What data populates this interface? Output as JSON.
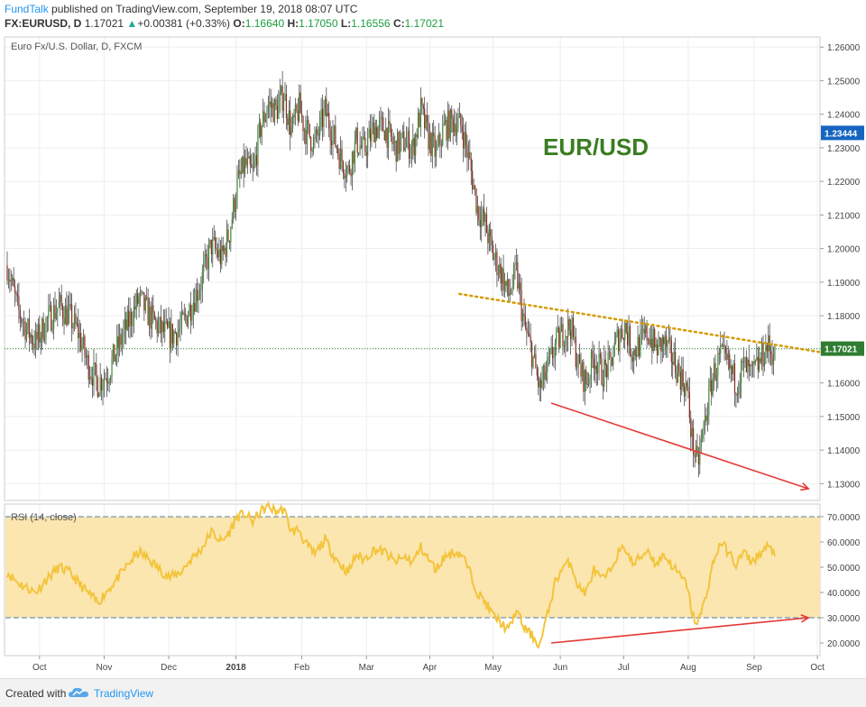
{
  "header": {
    "publisher": "FundTalk",
    "published_text": " published on TradingView.com, September 19, 2018 08:07 UTC",
    "symbol": "FX:EURUSD, D",
    "last": "1.17021",
    "change": "+0.00381 (+0.33%)",
    "o_label": "O:",
    "o": "1.16640",
    "h_label": "H:",
    "h": "1.17050",
    "l_label": "L:",
    "l": "1.16556",
    "c_label": "C:",
    "c": "1.17021"
  },
  "footer": {
    "created_with": "Created with",
    "brand": "TradingView"
  },
  "colors": {
    "up": "#3d8c36",
    "down": "#8a2a1e",
    "rsi": "#f3c43b",
    "rsi_band": "#fbe6b0",
    "trend": "#d49b00",
    "arrow": "#e53935",
    "eurusd_label": "#3a7d1f"
  },
  "chart_data": [
    {
      "type": "candlestick",
      "title": "Euro Fx/U.S. Dollar, D, FXCM",
      "annotation": "EUR/USD",
      "ylim": [
        1.125,
        1.263
      ],
      "y_ticks": [
        "1.26000",
        "1.25000",
        "1.24000",
        "1.23000",
        "1.22000",
        "1.21000",
        "1.20000",
        "1.19000",
        "1.18000",
        "1.17000",
        "1.16000",
        "1.15000",
        "1.14000",
        "1.13000"
      ],
      "y_tick_values": [
        1.26,
        1.25,
        1.24,
        1.23,
        1.22,
        1.21,
        1.2,
        1.19,
        1.18,
        1.17,
        1.16,
        1.15,
        1.14,
        1.13
      ],
      "current_price": 1.17021,
      "current_label": "1.17021",
      "marker_price": 1.23444,
      "marker_label": "1.23444",
      "x_labels": [
        "Oct",
        "Nov",
        "Dec",
        "2018",
        "Feb",
        "Mar",
        "Apr",
        "May",
        "Jun",
        "Jul",
        "Aug",
        "Sep",
        "Oct"
      ],
      "x_label_days": [
        25,
        75,
        125,
        177,
        228,
        278,
        327,
        376,
        428,
        477,
        527,
        578,
        627
      ],
      "close_path": [
        [
          0,
          1.195
        ],
        [
          8,
          1.182
        ],
        [
          15,
          1.176
        ],
        [
          22,
          1.172
        ],
        [
          30,
          1.178
        ],
        [
          40,
          1.183
        ],
        [
          48,
          1.18
        ],
        [
          55,
          1.175
        ],
        [
          62,
          1.166
        ],
        [
          70,
          1.16
        ],
        [
          78,
          1.163
        ],
        [
          86,
          1.171
        ],
        [
          95,
          1.179
        ],
        [
          102,
          1.185
        ],
        [
          110,
          1.18
        ],
        [
          118,
          1.176
        ],
        [
          126,
          1.174
        ],
        [
          134,
          1.176
        ],
        [
          142,
          1.183
        ],
        [
          150,
          1.19
        ],
        [
          158,
          1.201
        ],
        [
          166,
          1.197
        ],
        [
          172,
          1.205
        ],
        [
          178,
          1.219
        ],
        [
          184,
          1.225
        ],
        [
          190,
          1.222
        ],
        [
          196,
          1.236
        ],
        [
          202,
          1.243
        ],
        [
          208,
          1.241
        ],
        [
          214,
          1.246
        ],
        [
          220,
          1.235
        ],
        [
          226,
          1.242
        ],
        [
          230,
          1.236
        ],
        [
          238,
          1.231
        ],
        [
          246,
          1.241
        ],
        [
          252,
          1.234
        ],
        [
          258,
          1.227
        ],
        [
          264,
          1.223
        ],
        [
          270,
          1.232
        ],
        [
          276,
          1.229
        ],
        [
          284,
          1.236
        ],
        [
          292,
          1.236
        ],
        [
          300,
          1.23
        ],
        [
          308,
          1.232
        ],
        [
          314,
          1.23
        ],
        [
          320,
          1.241
        ],
        [
          326,
          1.233
        ],
        [
          332,
          1.228
        ],
        [
          338,
          1.236
        ],
        [
          346,
          1.238
        ],
        [
          352,
          1.236
        ],
        [
          358,
          1.225
        ],
        [
          364,
          1.212
        ],
        [
          370,
          1.207
        ],
        [
          376,
          1.198
        ],
        [
          382,
          1.193
        ],
        [
          388,
          1.186
        ],
        [
          394,
          1.193
        ],
        [
          400,
          1.177
        ],
        [
          406,
          1.169
        ],
        [
          412,
          1.158
        ],
        [
          418,
          1.164
        ],
        [
          424,
          1.171
        ],
        [
          430,
          1.175
        ],
        [
          436,
          1.177
        ],
        [
          442,
          1.165
        ],
        [
          448,
          1.16
        ],
        [
          454,
          1.168
        ],
        [
          460,
          1.163
        ],
        [
          466,
          1.165
        ],
        [
          472,
          1.173
        ],
        [
          478,
          1.177
        ],
        [
          484,
          1.169
        ],
        [
          490,
          1.172
        ],
        [
          496,
          1.175
        ],
        [
          502,
          1.17
        ],
        [
          508,
          1.172
        ],
        [
          514,
          1.168
        ],
        [
          520,
          1.163
        ],
        [
          526,
          1.158
        ],
        [
          530,
          1.143
        ],
        [
          534,
          1.135
        ],
        [
          540,
          1.149
        ],
        [
          546,
          1.162
        ],
        [
          552,
          1.168
        ],
        [
          558,
          1.165
        ],
        [
          564,
          1.16
        ],
        [
          570,
          1.165
        ],
        [
          576,
          1.162
        ],
        [
          582,
          1.166
        ],
        [
          588,
          1.171
        ],
        [
          594,
          1.168
        ]
      ],
      "trendline": [
        [
          350,
          1.1865
        ],
        [
          640,
          1.1685
        ]
      ],
      "arrow": [
        [
          421,
          1.154
        ],
        [
          620,
          1.1285
        ]
      ]
    },
    {
      "type": "line",
      "title": "RSI (14, close)",
      "ylim": [
        15,
        75
      ],
      "y_ticks": [
        "70.0000",
        "60.0000",
        "50.0000",
        "40.0000",
        "30.0000",
        "20.0000"
      ],
      "y_tick_values": [
        70,
        60,
        50,
        40,
        30,
        20
      ],
      "band": [
        30,
        70
      ],
      "rsi_path": [
        [
          0,
          48
        ],
        [
          8,
          44
        ],
        [
          15,
          42
        ],
        [
          22,
          40
        ],
        [
          30,
          45
        ],
        [
          40,
          50
        ],
        [
          48,
          48
        ],
        [
          55,
          44
        ],
        [
          62,
          40
        ],
        [
          70,
          36
        ],
        [
          78,
          41
        ],
        [
          86,
          46
        ],
        [
          95,
          52
        ],
        [
          102,
          56
        ],
        [
          110,
          53
        ],
        [
          118,
          49
        ],
        [
          126,
          46
        ],
        [
          134,
          48
        ],
        [
          142,
          53
        ],
        [
          150,
          57
        ],
        [
          158,
          64
        ],
        [
          166,
          60
        ],
        [
          172,
          64
        ],
        [
          178,
          70
        ],
        [
          184,
          71
        ],
        [
          190,
          68
        ],
        [
          196,
          72
        ],
        [
          202,
          74
        ],
        [
          208,
          72
        ],
        [
          214,
          73
        ],
        [
          220,
          64
        ],
        [
          226,
          65
        ],
        [
          230,
          60
        ],
        [
          238,
          55
        ],
        [
          246,
          61
        ],
        [
          252,
          55
        ],
        [
          258,
          51
        ],
        [
          264,
          48
        ],
        [
          270,
          55
        ],
        [
          276,
          53
        ],
        [
          284,
          57
        ],
        [
          292,
          56
        ],
        [
          300,
          52
        ],
        [
          308,
          54
        ],
        [
          314,
          52
        ],
        [
          320,
          58
        ],
        [
          326,
          53
        ],
        [
          332,
          49
        ],
        [
          338,
          54
        ],
        [
          346,
          56
        ],
        [
          352,
          55
        ],
        [
          358,
          48
        ],
        [
          364,
          40
        ],
        [
          370,
          36
        ],
        [
          376,
          31
        ],
        [
          382,
          28
        ],
        [
          388,
          25
        ],
        [
          394,
          33
        ],
        [
          400,
          26
        ],
        [
          406,
          23
        ],
        [
          412,
          19
        ],
        [
          418,
          31
        ],
        [
          424,
          44
        ],
        [
          430,
          50
        ],
        [
          436,
          52
        ],
        [
          442,
          42
        ],
        [
          448,
          40
        ],
        [
          454,
          49
        ],
        [
          460,
          45
        ],
        [
          466,
          48
        ],
        [
          472,
          55
        ],
        [
          478,
          58
        ],
        [
          484,
          51
        ],
        [
          490,
          54
        ],
        [
          496,
          57
        ],
        [
          502,
          51
        ],
        [
          508,
          55
        ],
        [
          514,
          51
        ],
        [
          520,
          47
        ],
        [
          526,
          43
        ],
        [
          530,
          32
        ],
        [
          534,
          27
        ],
        [
          540,
          37
        ],
        [
          546,
          51
        ],
        [
          552,
          60
        ],
        [
          558,
          56
        ],
        [
          564,
          51
        ],
        [
          570,
          56
        ],
        [
          576,
          52
        ],
        [
          582,
          55
        ],
        [
          588,
          58
        ],
        [
          594,
          56
        ]
      ],
      "arrow": [
        [
          421,
          20
        ],
        [
          620,
          30
        ]
      ]
    }
  ]
}
